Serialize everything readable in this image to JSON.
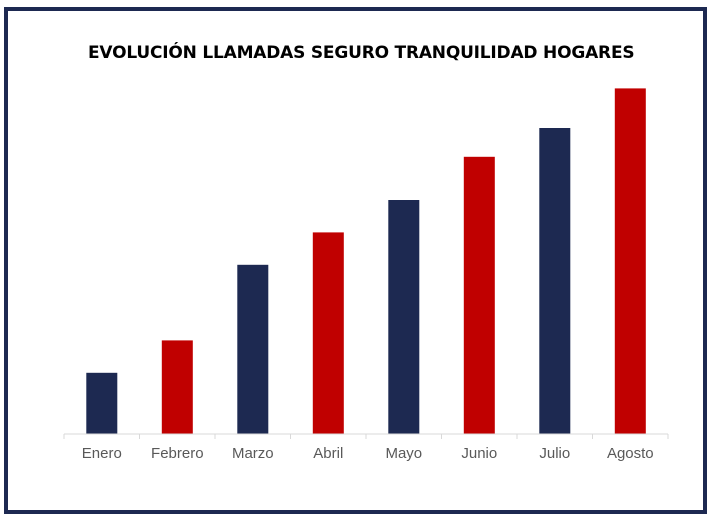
{
  "chart_data": {
    "type": "bar",
    "title": "EVOLUCIÓN LLAMADAS SEGURO TRANQUILIDAD HOGARES",
    "xlabel": "",
    "ylabel": "",
    "categories": [
      "Enero",
      "Febrero",
      "Marzo",
      "Abril",
      "Mayo",
      "Junio",
      "Julio",
      "Agosto"
    ],
    "values": [
      17,
      26,
      47,
      56,
      65,
      77,
      85,
      96
    ],
    "ylim": [
      0,
      100
    ],
    "grid": false,
    "legend": "none",
    "bar_colors": [
      "#1d2951",
      "#c00000",
      "#1d2951",
      "#c00000",
      "#1d2951",
      "#c00000",
      "#1d2951",
      "#c00000"
    ],
    "axis_color": "#d9d9d9"
  }
}
